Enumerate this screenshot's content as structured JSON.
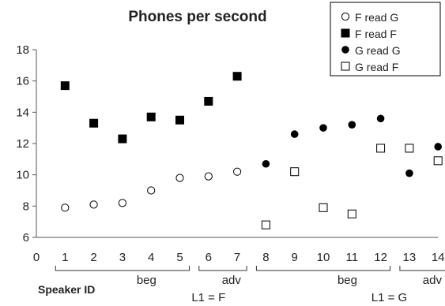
{
  "chart_data": {
    "type": "scatter",
    "title": "Phones per second",
    "xlabel": "Speaker ID",
    "ylabel": "",
    "xlim": [
      0,
      14
    ],
    "ylim": [
      6,
      18
    ],
    "x_ticks": [
      0,
      1,
      2,
      3,
      4,
      5,
      6,
      7,
      8,
      9,
      10,
      11,
      12,
      13,
      14
    ],
    "y_ticks": [
      6,
      8,
      10,
      12,
      14,
      16,
      18
    ],
    "grid": false,
    "legend_position": "top-right",
    "series": [
      {
        "name": "F read G",
        "marker": "open-circle",
        "points": [
          {
            "x": 1,
            "y": 7.9
          },
          {
            "x": 2,
            "y": 8.1
          },
          {
            "x": 3,
            "y": 8.2
          },
          {
            "x": 4,
            "y": 9.0
          },
          {
            "x": 5,
            "y": 9.8
          },
          {
            "x": 6,
            "y": 9.9
          },
          {
            "x": 7,
            "y": 10.2
          }
        ]
      },
      {
        "name": "F read F",
        "marker": "filled-square",
        "points": [
          {
            "x": 1,
            "y": 15.7
          },
          {
            "x": 2,
            "y": 13.3
          },
          {
            "x": 3,
            "y": 12.3
          },
          {
            "x": 4,
            "y": 13.7
          },
          {
            "x": 5,
            "y": 13.5
          },
          {
            "x": 6,
            "y": 14.7
          },
          {
            "x": 7,
            "y": 16.3
          }
        ]
      },
      {
        "name": "G read G",
        "marker": "filled-circle",
        "points": [
          {
            "x": 8,
            "y": 10.7
          },
          {
            "x": 9,
            "y": 12.6
          },
          {
            "x": 10,
            "y": 13.0
          },
          {
            "x": 11,
            "y": 13.2
          },
          {
            "x": 12,
            "y": 13.6
          },
          {
            "x": 13,
            "y": 10.1
          },
          {
            "x": 14,
            "y": 11.8
          }
        ]
      },
      {
        "name": "G read F",
        "marker": "open-square",
        "points": [
          {
            "x": 8,
            "y": 6.8
          },
          {
            "x": 9,
            "y": 10.2
          },
          {
            "x": 10,
            "y": 7.9
          },
          {
            "x": 11,
            "y": 7.5
          },
          {
            "x": 12,
            "y": 11.7
          },
          {
            "x": 13,
            "y": 11.7
          },
          {
            "x": 14,
            "y": 10.9
          }
        ]
      }
    ],
    "groups": [
      {
        "label": "beg",
        "from": 1,
        "to": 5
      },
      {
        "label": "adv",
        "from": 6,
        "to": 7
      },
      {
        "label": "beg",
        "from": 8,
        "to": 12
      },
      {
        "label": "adv",
        "from": 13,
        "to": 14
      }
    ],
    "l1_labels": [
      {
        "label": "L1 = F",
        "x": 6
      },
      {
        "label": "L1 = G",
        "x": 12.3
      }
    ],
    "colors": {
      "marker": "#000000",
      "axis": "#555555",
      "legend_border": "#000000"
    }
  }
}
